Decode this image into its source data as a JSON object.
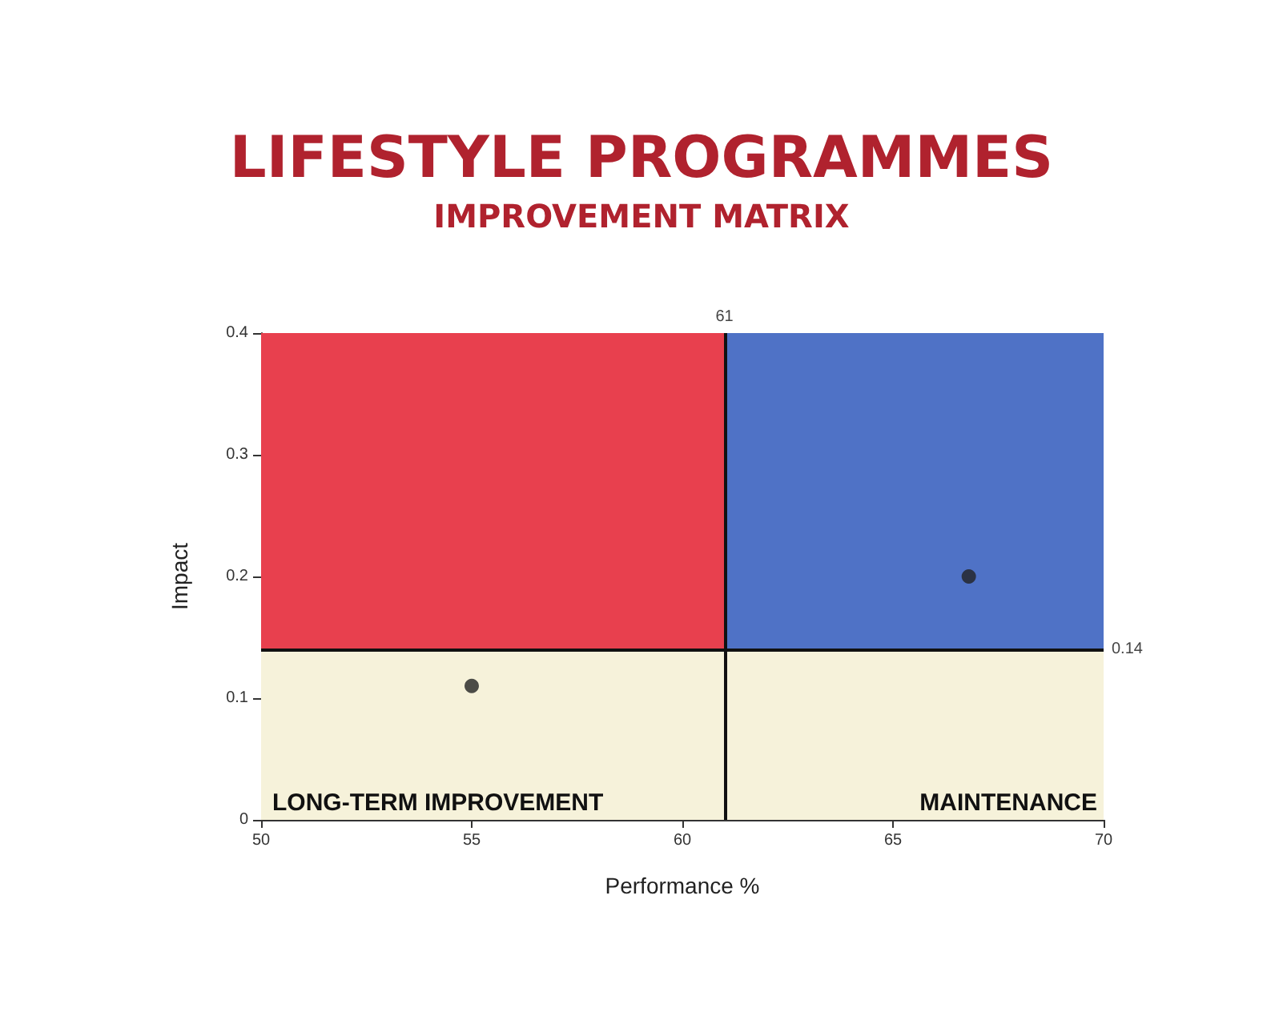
{
  "chart_data": {
    "type": "scatter",
    "title": "LIFESTYLE PROGRAMMES",
    "subtitle": "IMPROVEMENT MATRIX",
    "xlabel": "Performance %",
    "ylabel": "Impact",
    "x": [
      55,
      66.8
    ],
    "series": [
      {
        "color": "#222222",
        "values": [
          0.11,
          0.2
        ]
      }
    ],
    "xlim": [
      50,
      70
    ],
    "xticks": [
      50,
      55,
      60,
      65,
      70
    ],
    "ylim": [
      0,
      0.4
    ],
    "yticks": [
      0,
      0.1,
      0.2,
      0.3,
      0.4
    ],
    "bands": [
      {
        "axis": "x",
        "from": 50,
        "to": 61,
        "color": "#e8404e"
      },
      {
        "axis": "x",
        "from": 61,
        "to": 70,
        "color": "#4f72c6"
      },
      {
        "axis": "y",
        "from": 0,
        "to": 0.14,
        "color": "#f6f2da"
      }
    ],
    "ref_lines": [
      {
        "axis": "x",
        "value": 61,
        "label": "61"
      },
      {
        "axis": "y",
        "value": 0.14,
        "label": "0.14"
      }
    ],
    "annotations": [
      "LONG-TERM IMPROVEMENT",
      "MAINTENANCE"
    ],
    "marker": "circle",
    "grid": false
  }
}
